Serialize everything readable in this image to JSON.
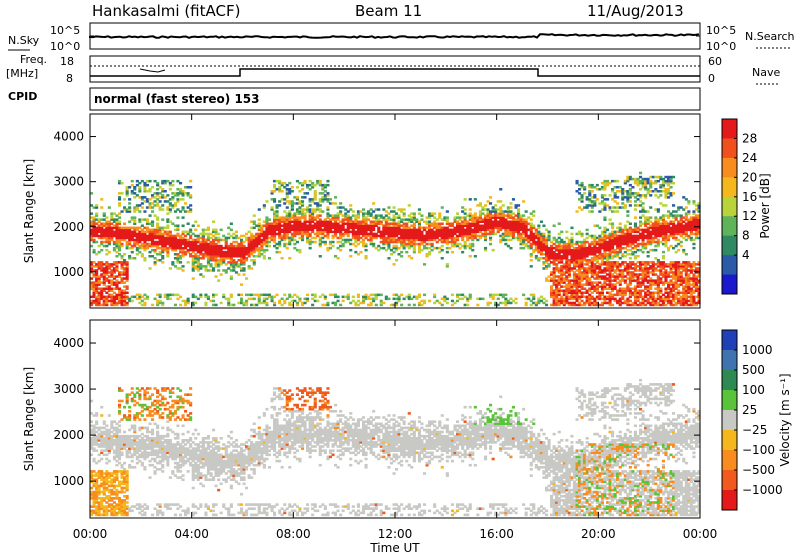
{
  "header": {
    "station": "Hankasalmi (fitACF)",
    "beam": "Beam 11",
    "date": "11/Aug/2013"
  },
  "status_panels": {
    "nsky_label": "N.Sky",
    "nsearch_label": "N.Search",
    "freq_label_1": "Freq.",
    "freq_label_2": "[MHz]",
    "cpid_label": "CPID",
    "nave_label": "Nave",
    "left_ticks_top": [
      "10^5",
      "10^0"
    ],
    "right_ticks_top": [
      "10^5",
      "10^0"
    ],
    "freq_ticks": [
      "18",
      "8"
    ],
    "nave_ticks": [
      "60",
      "0"
    ],
    "cpid_text": "normal (fast stereo) 153"
  },
  "colorbars": {
    "power_title": "Power [dB]",
    "power_ticks": [
      "28",
      "24",
      "20",
      "16",
      "12",
      "8",
      "4"
    ],
    "power_colors": [
      "#e41a1a",
      "#f0501e",
      "#f88c1e",
      "#f5b81c",
      "#b8d43a",
      "#5fb45a",
      "#2f8a63",
      "#2a5aa8",
      "#1a1acc"
    ],
    "velocity_title": "Velocity [m s⁻¹]",
    "velocity_ticks": [
      "1000",
      "500",
      "100",
      "25",
      "−25",
      "−100",
      "−500",
      "−1000"
    ],
    "velocity_colors": [
      "#2040b8",
      "#3f74b0",
      "#2e8a52",
      "#59c43a",
      "#c8c8c4",
      "#f5b81c",
      "#f88c1e",
      "#f05a1e",
      "#e41a1a"
    ]
  },
  "chart_data": [
    {
      "type": "heatmap",
      "title": "Power",
      "ylabel": "Slant Range [km]",
      "xlabel": "Time UT",
      "x_ticks": [
        "00:00",
        "04:00",
        "08:00",
        "12:00",
        "16:00",
        "20:00",
        "00:00"
      ],
      "y_ticks": [
        "4000",
        "3000",
        "2000",
        "1000"
      ],
      "xlim_hours": [
        0,
        24
      ],
      "ylim_km": [
        200,
        4500
      ],
      "colorbar_range_db": [
        0,
        32
      ],
      "main_echo_band": {
        "x_hours": [
          0,
          1,
          2,
          3,
          4,
          5,
          6,
          7,
          8,
          9,
          10,
          11,
          12,
          13,
          14,
          15,
          16,
          17,
          18,
          19,
          20,
          21,
          22,
          23,
          24
        ],
        "range_km": [
          1900,
          1850,
          1750,
          1650,
          1550,
          1450,
          1400,
          1900,
          2000,
          2000,
          1950,
          1900,
          1850,
          1800,
          1850,
          1950,
          2100,
          1950,
          1400,
          1350,
          1500,
          1700,
          1850,
          1950,
          2050
        ]
      }
    },
    {
      "type": "heatmap",
      "title": "Velocity",
      "ylabel": "Slant Range [km]",
      "xlabel": "Time UT",
      "x_ticks": [
        "00:00",
        "04:00",
        "08:00",
        "12:00",
        "16:00",
        "20:00",
        "00:00"
      ],
      "y_ticks": [
        "4000",
        "3000",
        "2000",
        "1000"
      ],
      "xlim_hours": [
        0,
        24
      ],
      "ylim_km": [
        200,
        4500
      ],
      "colorbar_range_ms": [
        -1000,
        1000
      ]
    }
  ]
}
